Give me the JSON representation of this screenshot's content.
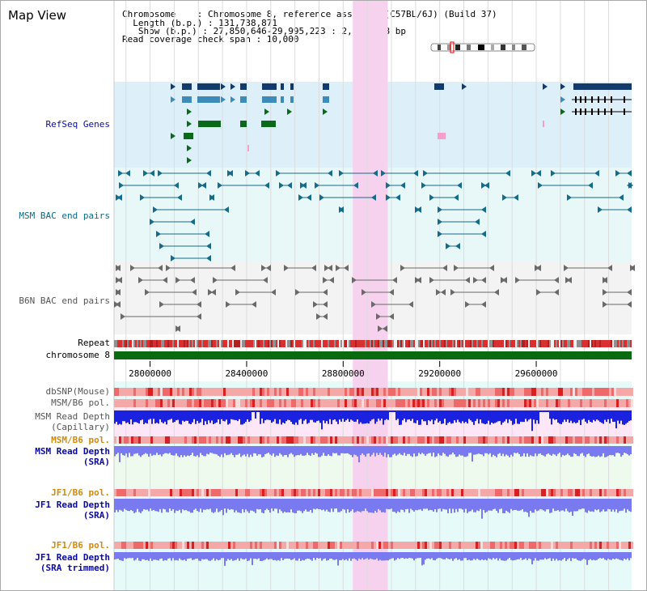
{
  "title": "Map View",
  "header": {
    "line1": "Chromosome    : Chromosome 8, reference assembly (C57BL/6J) (Build 37)",
    "line2": "  Length (b.p.) : 131,738,871",
    "line3": "   Show (b.p.) : 27,850,646-29,995,223 : 2,144,578 bp",
    "line4": "Read coverage check span : 10,000"
  },
  "tracks": {
    "refseq": "RefSeq Genes",
    "msm_bac": "MSM BAC end pairs",
    "b6n_bac": "B6N BAC end pairs",
    "repeat": "Repeat",
    "chromosome": "chromosome 8",
    "dbsnp": "dbSNP(Mouse)",
    "msm_pol": "MSM/B6 pol.",
    "msm_depth_cap": "MSM Read Depth",
    "capillary": "(Capillary)",
    "msm_pol2": "MSM/B6 pol.",
    "msm_depth_sra": "MSM Read Depth",
    "sra": "(SRA)",
    "jf1_pol": "JF1/B6 pol.",
    "jf1_depth": "JF1 Read Depth",
    "sra_trimmed": "(SRA trimmed)"
  },
  "axis": {
    "ticks": [
      {
        "pos": 28000000,
        "label": "28000000"
      },
      {
        "pos": 28400000,
        "label": "28400000"
      },
      {
        "pos": 28800000,
        "label": "28800000"
      },
      {
        "pos": 29200000,
        "label": "29200000"
      },
      {
        "pos": 29600000,
        "label": "29600000"
      }
    ],
    "grid_step": 100000,
    "start": 27850646,
    "end": 29995223
  },
  "highlight": {
    "start": 28840000,
    "end": 28985000
  },
  "colors": {
    "refseq_bg": "#ddf0fa",
    "bac_bg": "#e8f8f8",
    "b6n_bg": "#f3f3f3",
    "depth_bg": "#e6fafa",
    "highlight": "#f6d2ee",
    "gene_dark": "#123a6a",
    "gene_mid": "#3d8bb8",
    "gene_green": "#0a6a1a",
    "bac_teal": "#166a8a",
    "b6n_gray": "#6a6a6a",
    "chromosome": "#0a6a10",
    "depth_blue": "#1a22e0",
    "depth_light": "#7a7af0",
    "label_blue": "#0a0aa0",
    "label_orange": "#d48a0a",
    "label_teal": "#0a6a8a"
  }
}
